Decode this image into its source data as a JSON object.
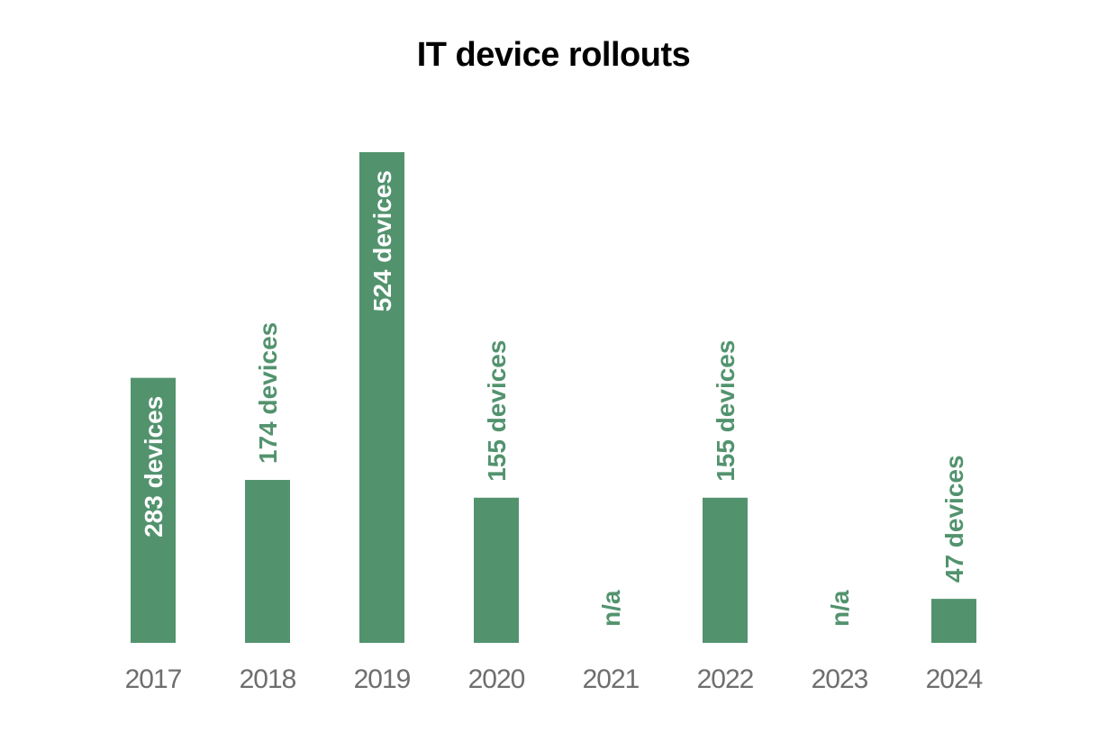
{
  "colors": {
    "bar": "#52936e",
    "label_inside": "#ffffff",
    "label_outside": "#52936e",
    "tick": "#6e6e6e"
  },
  "chart_data": {
    "type": "bar",
    "title": "IT device rollouts",
    "xlabel": "",
    "ylabel": "",
    "categories": [
      "2017",
      "2018",
      "2019",
      "2020",
      "2021",
      "2022",
      "2023",
      "2024"
    ],
    "values": [
      283,
      174,
      524,
      155,
      null,
      155,
      null,
      47
    ],
    "data_labels": [
      "283 devices",
      "174 devices",
      "524 devices",
      "155 devices",
      "n/a",
      "155 devices",
      "n/a",
      "47 devices"
    ],
    "ylim": [
      0,
      524
    ],
    "grid": false,
    "legend": "none"
  }
}
